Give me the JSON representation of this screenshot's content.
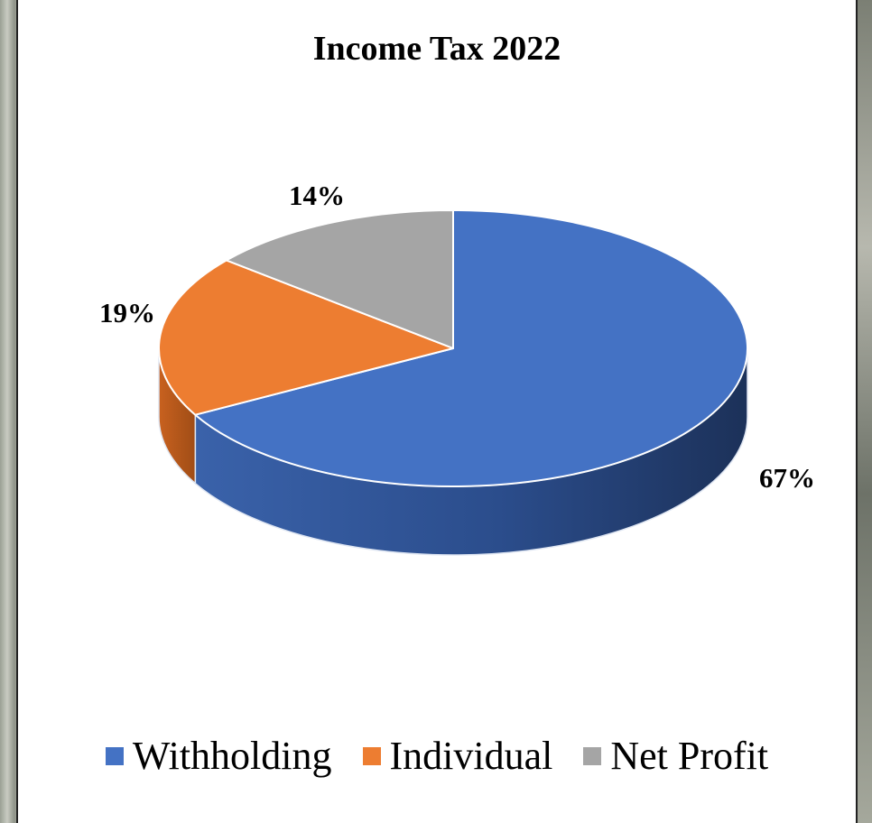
{
  "chart_data": {
    "type": "pie",
    "title": "Income Tax 2022",
    "categories": [
      "Withholding",
      "Individual",
      "Net Profit"
    ],
    "values": [
      67,
      19,
      14
    ],
    "labels": [
      "67%",
      "19%",
      "14%"
    ],
    "colors": [
      "#4472C4",
      "#ED7D31",
      "#A5A5A5"
    ],
    "legend_position": "bottom",
    "style": "3d"
  }
}
